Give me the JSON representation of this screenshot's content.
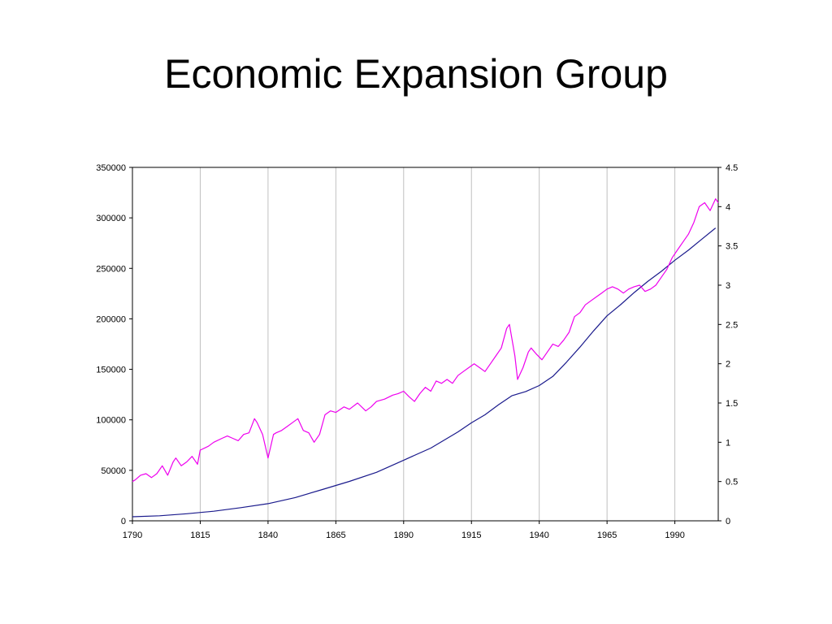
{
  "slide": {
    "title": "Economic Expansion Group"
  },
  "chart_data": {
    "type": "line",
    "title": "",
    "xlabel": "",
    "ylabel": "",
    "xlim": [
      1790,
      2006
    ],
    "ylim_left": [
      0,
      350000
    ],
    "ylim_right": [
      0,
      4.5
    ],
    "x_ticks": [
      "1790",
      "1815",
      "1840",
      "1865",
      "1890",
      "1915",
      "1940",
      "1965",
      "1990"
    ],
    "y_left_ticks": [
      "0",
      "50000",
      "100000",
      "150000",
      "200000",
      "250000",
      "300000",
      "350000"
    ],
    "y_right_ticks": [
      "0",
      "0.5",
      "1",
      "1.5",
      "2",
      "2.5",
      "3",
      "3.5",
      "4",
      "4.5"
    ],
    "grid": "vertical",
    "legend": "none",
    "series": [
      {
        "axis": "left",
        "color": "#1a1a8c",
        "x": [
          1790,
          1800,
          1810,
          1820,
          1830,
          1840,
          1850,
          1860,
          1870,
          1880,
          1890,
          1900,
          1910,
          1915,
          1920,
          1925,
          1930,
          1935,
          1940,
          1945,
          1950,
          1955,
          1960,
          1965,
          1970,
          1975,
          1980,
          1985,
          1990,
          1995,
          2000,
          2005
        ],
        "values": [
          4000,
          5000,
          7000,
          9500,
          13000,
          17000,
          23000,
          31000,
          39000,
          48000,
          60000,
          72000,
          88000,
          97000,
          105000,
          115000,
          124000,
          128000,
          134000,
          143000,
          157000,
          172000,
          188000,
          203000,
          214000,
          226000,
          237000,
          247000,
          258000,
          268000,
          279000,
          290000
        ]
      },
      {
        "axis": "right",
        "color": "#ee00ee",
        "x": [
          1790,
          1791,
          1793,
          1795,
          1797,
          1799,
          1801,
          1803,
          1805,
          1806,
          1808,
          1810,
          1812,
          1814,
          1815,
          1818,
          1820,
          1823,
          1825,
          1827,
          1829,
          1831,
          1833,
          1835,
          1836,
          1838,
          1840,
          1842,
          1843,
          1845,
          1847,
          1849,
          1851,
          1853,
          1855,
          1857,
          1859,
          1861,
          1863,
          1865,
          1868,
          1870,
          1873,
          1876,
          1878,
          1880,
          1883,
          1886,
          1888,
          1890,
          1892,
          1894,
          1896,
          1898,
          1900,
          1902,
          1904,
          1906,
          1908,
          1910,
          1912,
          1914,
          1916,
          1918,
          1920,
          1922,
          1924,
          1926,
          1928,
          1929,
          1931,
          1932,
          1934,
          1936,
          1937,
          1939,
          1941,
          1943,
          1945,
          1947,
          1949,
          1951,
          1953,
          1955,
          1957,
          1959,
          1961,
          1963,
          1965,
          1967,
          1969,
          1971,
          1973,
          1975,
          1977,
          1979,
          1981,
          1983,
          1985,
          1987,
          1989,
          1991,
          1993,
          1995,
          1997,
          1999,
          2001,
          2003,
          2005,
          2006
        ],
        "values": [
          0.5,
          0.52,
          0.58,
          0.6,
          0.55,
          0.6,
          0.7,
          0.58,
          0.75,
          0.8,
          0.7,
          0.75,
          0.82,
          0.72,
          0.9,
          0.95,
          1.0,
          1.05,
          1.08,
          1.05,
          1.02,
          1.1,
          1.12,
          1.3,
          1.25,
          1.1,
          0.8,
          1.1,
          1.12,
          1.15,
          1.2,
          1.25,
          1.3,
          1.15,
          1.12,
          1.0,
          1.1,
          1.35,
          1.4,
          1.38,
          1.45,
          1.42,
          1.5,
          1.4,
          1.45,
          1.52,
          1.55,
          1.6,
          1.62,
          1.65,
          1.58,
          1.52,
          1.62,
          1.7,
          1.65,
          1.78,
          1.75,
          1.8,
          1.75,
          1.85,
          1.9,
          1.95,
          2.0,
          1.95,
          1.9,
          2.0,
          2.1,
          2.2,
          2.45,
          2.5,
          2.1,
          1.8,
          1.95,
          2.15,
          2.2,
          2.12,
          2.05,
          2.15,
          2.25,
          2.22,
          2.3,
          2.4,
          2.6,
          2.65,
          2.75,
          2.8,
          2.85,
          2.9,
          2.95,
          2.98,
          2.95,
          2.9,
          2.95,
          2.98,
          3.0,
          2.92,
          2.95,
          3.0,
          3.1,
          3.2,
          3.35,
          3.45,
          3.55,
          3.65,
          3.8,
          4.0,
          4.05,
          3.95,
          4.1,
          4.05
        ]
      }
    ]
  }
}
